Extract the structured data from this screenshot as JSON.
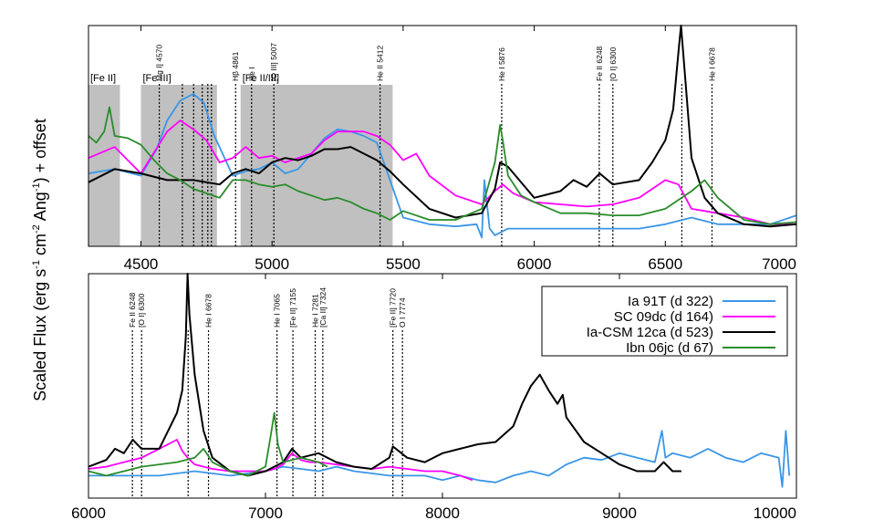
{
  "chart_data": [
    {
      "type": "line",
      "panel": "top",
      "xlim": [
        4300,
        7000
      ],
      "ylim": [
        0,
        1
      ],
      "x_ticks": [
        4500,
        5000,
        5500,
        6000,
        6500,
        7000
      ],
      "shaded_regions": [
        {
          "x0": 4300,
          "x1": 4420,
          "label": "[Fe II]"
        },
        {
          "x0": 4500,
          "x1": 4790,
          "label": "[Fe III]"
        },
        {
          "x0": 4880,
          "x1": 5460,
          "label": "[Fe II/III]"
        }
      ],
      "line_markers": [
        {
          "x": 4570,
          "label": "Mg I] 4570"
        },
        {
          "x": 4658,
          "label": ""
        },
        {
          "x": 4701,
          "label": ""
        },
        {
          "x": 4734,
          "label": ""
        },
        {
          "x": 4755,
          "label": ""
        },
        {
          "x": 4769,
          "label": ""
        },
        {
          "x": 4861,
          "label": "Hβ 4861"
        },
        {
          "x": 4922,
          "label": "He I"
        },
        {
          "x": 5007,
          "label": "[O III] 5007"
        },
        {
          "x": 5412,
          "label": "He II 5412"
        },
        {
          "x": 5876,
          "label": "He I 5876"
        },
        {
          "x": 6248,
          "label": "Fe II 6248"
        },
        {
          "x": 6300,
          "label": "[O I] 6300"
        },
        {
          "x": 6563,
          "label": ""
        },
        {
          "x": 6678,
          "label": "He I 6678"
        }
      ],
      "series": [
        {
          "name": "Ia 91T (d 322)",
          "color": "#3a96e6",
          "x": [
            4300,
            4400,
            4500,
            4560,
            4600,
            4650,
            4700,
            4740,
            4780,
            4850,
            4900,
            4950,
            5000,
            5050,
            5100,
            5150,
            5200,
            5250,
            5300,
            5350,
            5400,
            5450,
            5500,
            5600,
            5700,
            5780,
            5800,
            5810,
            5830,
            5850,
            5900,
            6000,
            6100,
            6200,
            6300,
            6400,
            6500,
            6600,
            6700,
            6800,
            6900,
            7000
          ],
          "y": [
            0.33,
            0.35,
            0.32,
            0.44,
            0.57,
            0.66,
            0.69,
            0.65,
            0.5,
            0.32,
            0.34,
            0.35,
            0.38,
            0.33,
            0.35,
            0.42,
            0.49,
            0.53,
            0.52,
            0.5,
            0.47,
            0.3,
            0.13,
            0.1,
            0.09,
            0.1,
            0.04,
            0.3,
            0.08,
            0.05,
            0.08,
            0.08,
            0.08,
            0.08,
            0.08,
            0.08,
            0.1,
            0.13,
            0.1,
            0.1,
            0.1,
            0.14
          ]
        },
        {
          "name": "SC 09dc (d 164)",
          "color": "#ff00ff",
          "x": [
            4300,
            4400,
            4500,
            4600,
            4650,
            4700,
            4750,
            4800,
            4850,
            4900,
            4950,
            5000,
            5050,
            5100,
            5150,
            5200,
            5250,
            5300,
            5350,
            5400,
            5450,
            5500,
            5550,
            5600,
            5700,
            5800,
            5850,
            5880,
            5920,
            6000,
            6100,
            6200,
            6300,
            6400,
            6500,
            6550,
            6600,
            6700,
            6800,
            6900,
            7000
          ],
          "y": [
            0.4,
            0.45,
            0.33,
            0.52,
            0.57,
            0.53,
            0.48,
            0.38,
            0.4,
            0.45,
            0.4,
            0.41,
            0.38,
            0.4,
            0.42,
            0.48,
            0.52,
            0.52,
            0.52,
            0.5,
            0.46,
            0.39,
            0.42,
            0.32,
            0.23,
            0.19,
            0.25,
            0.28,
            0.24,
            0.2,
            0.19,
            0.18,
            0.19,
            0.22,
            0.3,
            0.28,
            0.17,
            0.15,
            0.13,
            0.1,
            0.1
          ]
        },
        {
          "name": "Ia-CSM 12ca (d 523)",
          "color": "#000000",
          "x": [
            4300,
            4400,
            4500,
            4600,
            4700,
            4800,
            4850,
            4900,
            4950,
            5000,
            5050,
            5100,
            5150,
            5200,
            5250,
            5300,
            5350,
            5400,
            5450,
            5500,
            5600,
            5700,
            5800,
            5850,
            5870,
            5900,
            6000,
            6100,
            6150,
            6200,
            6250,
            6300,
            6400,
            6450,
            6500,
            6530,
            6550,
            6560,
            6580,
            6600,
            6650,
            6700,
            6800,
            6900,
            7000
          ],
          "y": [
            0.29,
            0.35,
            0.33,
            0.3,
            0.3,
            0.28,
            0.33,
            0.35,
            0.33,
            0.38,
            0.4,
            0.39,
            0.41,
            0.44,
            0.44,
            0.45,
            0.42,
            0.39,
            0.34,
            0.28,
            0.17,
            0.13,
            0.15,
            0.26,
            0.38,
            0.36,
            0.22,
            0.25,
            0.3,
            0.27,
            0.33,
            0.28,
            0.3,
            0.38,
            0.48,
            0.62,
            0.88,
            1.06,
            0.7,
            0.4,
            0.22,
            0.15,
            0.1,
            0.09,
            0.1
          ]
        },
        {
          "name": "Ibn 06jc (d 67)",
          "color": "#2a8c2a",
          "x": [
            4300,
            4330,
            4360,
            4380,
            4400,
            4450,
            4500,
            4550,
            4600,
            4650,
            4700,
            4750,
            4800,
            4850,
            4900,
            4950,
            5000,
            5050,
            5100,
            5150,
            5200,
            5250,
            5300,
            5350,
            5400,
            5450,
            5500,
            5600,
            5700,
            5800,
            5850,
            5870,
            5880,
            5900,
            5950,
            6000,
            6100,
            6200,
            6300,
            6400,
            6500,
            6600,
            6650,
            6700,
            6800,
            6900,
            7000
          ],
          "y": [
            0.5,
            0.47,
            0.52,
            0.63,
            0.5,
            0.49,
            0.46,
            0.39,
            0.33,
            0.3,
            0.26,
            0.24,
            0.22,
            0.3,
            0.3,
            0.28,
            0.27,
            0.28,
            0.25,
            0.23,
            0.21,
            0.22,
            0.2,
            0.17,
            0.15,
            0.12,
            0.16,
            0.12,
            0.12,
            0.17,
            0.38,
            0.55,
            0.48,
            0.32,
            0.23,
            0.2,
            0.15,
            0.15,
            0.14,
            0.14,
            0.17,
            0.25,
            0.3,
            0.22,
            0.12,
            0.1,
            0.11
          ]
        }
      ]
    },
    {
      "type": "line",
      "panel": "bottom",
      "xlim": [
        6000,
        10000
      ],
      "ylim": [
        0,
        1
      ],
      "x_ticks": [
        6000,
        7000,
        8000,
        9000,
        10000
      ],
      "line_markers": [
        {
          "x": 6248,
          "label": "Fe II 6248"
        },
        {
          "x": 6300,
          "label": "[O I] 6300"
        },
        {
          "x": 6563,
          "label": ""
        },
        {
          "x": 6678,
          "label": "He I 6678"
        },
        {
          "x": 7065,
          "label": "He I 7065"
        },
        {
          "x": 7155,
          "label": "[Fe II] 7155"
        },
        {
          "x": 7281,
          "label": "He I 7281"
        },
        {
          "x": 7324,
          "label": "[Ca II] 7324"
        },
        {
          "x": 7720,
          "label": "[Fe II] 7720"
        },
        {
          "x": 7774,
          "label": "O I 7774"
        }
      ],
      "series": [
        {
          "name": "Ia 91T (d 322)",
          "color": "#3a96e6",
          "x": [
            6000,
            6200,
            6400,
            6600,
            6800,
            7000,
            7100,
            7200,
            7300,
            7400,
            7500,
            7600,
            7700,
            7800,
            7900,
            8000,
            8100,
            8200,
            8300,
            8400,
            8500,
            8600,
            8700,
            8800,
            8900,
            9000,
            9100,
            9200,
            9240,
            9260,
            9300,
            9400,
            9500,
            9600,
            9700,
            9800,
            9900,
            9920,
            9940,
            9960
          ],
          "y": [
            0.1,
            0.1,
            0.1,
            0.12,
            0.1,
            0.12,
            0.14,
            0.13,
            0.12,
            0.14,
            0.12,
            0.11,
            0.1,
            0.1,
            0.1,
            0.08,
            0.1,
            0.08,
            0.07,
            0.1,
            0.12,
            0.1,
            0.15,
            0.18,
            0.17,
            0.2,
            0.18,
            0.16,
            0.3,
            0.18,
            0.2,
            0.18,
            0.22,
            0.18,
            0.16,
            0.2,
            0.18,
            0.05,
            0.3,
            0.1
          ]
        },
        {
          "name": "SC 09dc (d 164)",
          "color": "#ff00ff",
          "x": [
            6000,
            6100,
            6200,
            6300,
            6400,
            6500,
            6530,
            6560,
            6600,
            6700,
            6800,
            6900,
            7000,
            7050,
            7100,
            7150,
            7200,
            7250,
            7300,
            7400,
            7500,
            7600,
            7700,
            7800,
            7900,
            8000,
            8100,
            8170
          ],
          "y": [
            0.13,
            0.14,
            0.16,
            0.18,
            0.22,
            0.26,
            0.21,
            0.18,
            0.15,
            0.13,
            0.12,
            0.12,
            0.12,
            0.13,
            0.15,
            0.2,
            0.17,
            0.16,
            0.16,
            0.15,
            0.14,
            0.13,
            0.14,
            0.13,
            0.12,
            0.12,
            0.1,
            0.08
          ]
        },
        {
          "name": "Ia-CSM 12ca (d 523)",
          "color": "#000000",
          "x": [
            6000,
            6100,
            6150,
            6200,
            6250,
            6300,
            6400,
            6450,
            6500,
            6530,
            6550,
            6560,
            6570,
            6600,
            6650,
            6700,
            6800,
            6900,
            7000,
            7100,
            7150,
            7200,
            7300,
            7400,
            7500,
            7600,
            7700,
            7720,
            7800,
            7900,
            8000,
            8100,
            8200,
            8300,
            8400,
            8450,
            8500,
            8550,
            8600,
            8650,
            8680,
            8700,
            8800,
            8900,
            9000,
            9100,
            9200,
            9250,
            9300,
            9350
          ],
          "y": [
            0.14,
            0.17,
            0.22,
            0.2,
            0.26,
            0.22,
            0.22,
            0.3,
            0.38,
            0.48,
            0.72,
            1.05,
            0.82,
            0.55,
            0.3,
            0.18,
            0.12,
            0.1,
            0.12,
            0.16,
            0.22,
            0.18,
            0.2,
            0.16,
            0.14,
            0.13,
            0.18,
            0.23,
            0.18,
            0.16,
            0.2,
            0.22,
            0.24,
            0.25,
            0.32,
            0.42,
            0.5,
            0.55,
            0.48,
            0.42,
            0.46,
            0.36,
            0.25,
            0.2,
            0.15,
            0.12,
            0.12,
            0.16,
            0.12,
            0.12
          ]
        },
        {
          "name": "Ibn 06jc (d 67)",
          "color": "#2a8c2a",
          "x": [
            6000,
            6100,
            6200,
            6300,
            6400,
            6500,
            6600,
            6650,
            6700,
            6800,
            6900,
            7000,
            7030,
            7050,
            7070,
            7100,
            7200,
            7300,
            7350
          ],
          "y": [
            0.12,
            0.1,
            0.12,
            0.14,
            0.15,
            0.16,
            0.18,
            0.22,
            0.16,
            0.12,
            0.1,
            0.14,
            0.28,
            0.38,
            0.24,
            0.16,
            0.18,
            0.16,
            0.14
          ]
        }
      ]
    }
  ],
  "legend": {
    "placement": "top-right of bottom panel",
    "items": [
      {
        "label": "Ia 91T (d 322)",
        "color": "#3a96e6"
      },
      {
        "label": "SC 09dc (d 164)",
        "color": "#ff00ff"
      },
      {
        "label": "Ia-CSM 12ca (d 523)",
        "color": "#000000"
      },
      {
        "label": "Ibn 06jc (d 67)",
        "color": "#2a8c2a"
      }
    ]
  },
  "ylabel": "Scaled Flux (erg s-1 cm-2 Ang-1) + offset"
}
